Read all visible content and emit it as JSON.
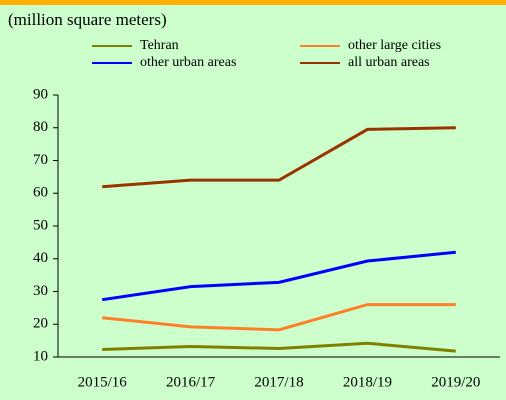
{
  "chart_data": {
    "type": "line",
    "title": "(million square meters)",
    "categories": [
      "2015/16",
      "2016/17",
      "2017/18",
      "2018/19",
      "2019/20"
    ],
    "series": [
      {
        "name": "Tehran",
        "color": "#808000",
        "values": [
          12.3,
          13.2,
          12.6,
          14.2,
          11.8
        ]
      },
      {
        "name": "other large cities",
        "color": "#ff7f27",
        "values": [
          22,
          19.2,
          18.3,
          26,
          26
        ]
      },
      {
        "name": "other urban areas",
        "color": "#0000ff",
        "values": [
          27.5,
          31.5,
          32.8,
          39.3,
          42
        ]
      },
      {
        "name": "all urban areas",
        "color": "#993300",
        "values": [
          62,
          64,
          64,
          79.5,
          80
        ]
      }
    ],
    "ylim": [
      10,
      90
    ],
    "yticks": [
      10,
      20,
      30,
      40,
      50,
      60,
      70,
      80,
      90
    ],
    "grid": false
  }
}
